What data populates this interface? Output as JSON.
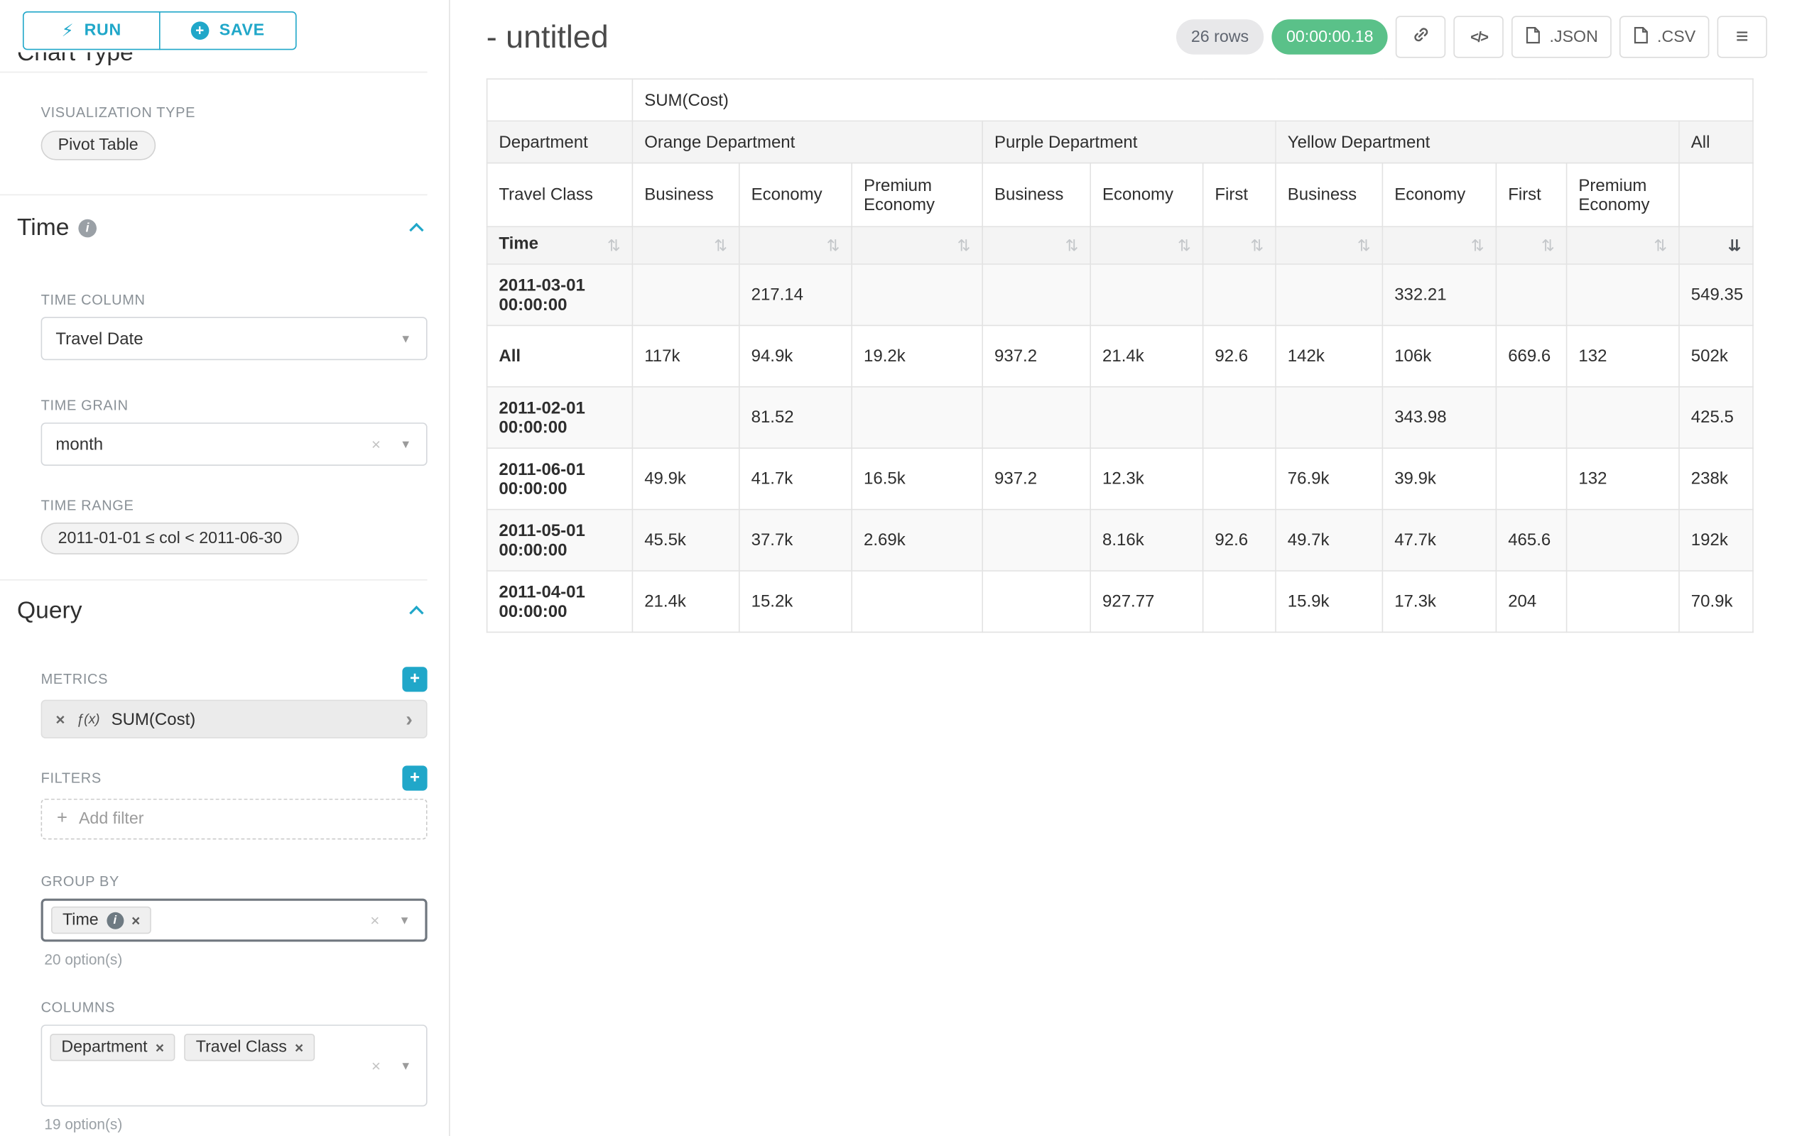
{
  "colors": {
    "accent": "#20a7c9",
    "timer_green": "#5ac189"
  },
  "icons": {
    "lightning": "⚡",
    "plus": "+",
    "chevron_down": "▾",
    "clear": "×",
    "caret_right": "›",
    "fx": "ƒ(x)",
    "info": "i",
    "sort": "⇅",
    "sort_desc": "⇊",
    "menu": "≡",
    "code": "</>"
  },
  "sidebar": {
    "run_button": "RUN",
    "save_button": "SAVE",
    "chart_type_heading": "Chart Type",
    "visualization_type_label": "VISUALIZATION TYPE",
    "visualization_type_value": "Pivot Table",
    "time": {
      "heading": "Time",
      "time_column_label": "TIME COLUMN",
      "time_column_value": "Travel Date",
      "time_grain_label": "TIME GRAIN",
      "time_grain_value": "month",
      "time_range_label": "TIME RANGE",
      "time_range_value": "2011-01-01 ≤ col < 2011-06-30"
    },
    "query": {
      "heading": "Query",
      "metrics_label": "METRICS",
      "metric_value": "SUM(Cost)",
      "filters_label": "FILTERS",
      "add_filter_placeholder": "Add filter",
      "group_by_label": "GROUP BY",
      "group_by_chips": [
        "Time"
      ],
      "group_by_options_hint": "20 option(s)",
      "columns_label": "COLUMNS",
      "columns_chips": [
        "Department",
        "Travel Class"
      ],
      "columns_options_hint": "19 option(s)"
    }
  },
  "header": {
    "title": "- untitled",
    "row_count_badge": "26 rows",
    "timer_badge": "00:00:00.18",
    "json_button": ".JSON",
    "csv_button": ".CSV"
  },
  "chart_data": {
    "type": "table",
    "metric_header": "SUM(Cost)",
    "row_dimension_labels": [
      "Department",
      "Travel Class",
      "Time"
    ],
    "column_groups": [
      {
        "label": "Orange Department",
        "columns": [
          "Business",
          "Economy",
          "Premium Economy"
        ]
      },
      {
        "label": "Purple Department",
        "columns": [
          "Business",
          "Economy",
          "First"
        ]
      },
      {
        "label": "Yellow Department",
        "columns": [
          "Business",
          "Economy",
          "First",
          "Premium Economy"
        ]
      },
      {
        "label": "All",
        "columns": [
          ""
        ]
      }
    ],
    "sort": {
      "column": "All",
      "direction": "desc"
    },
    "rows": [
      {
        "label": "2011-03-01 00:00:00",
        "values": [
          "",
          "217.14",
          "",
          "",
          "",
          "",
          "",
          "332.21",
          "",
          "",
          "549.35"
        ]
      },
      {
        "label": "All",
        "values": [
          "117k",
          "94.9k",
          "19.2k",
          "937.2",
          "21.4k",
          "92.6",
          "142k",
          "106k",
          "669.6",
          "132",
          "502k"
        ]
      },
      {
        "label": "2011-02-01 00:00:00",
        "values": [
          "",
          "81.52",
          "",
          "",
          "",
          "",
          "",
          "343.98",
          "",
          "",
          "425.5"
        ]
      },
      {
        "label": "2011-06-01 00:00:00",
        "values": [
          "49.9k",
          "41.7k",
          "16.5k",
          "937.2",
          "12.3k",
          "",
          "76.9k",
          "39.9k",
          "",
          "132",
          "238k"
        ]
      },
      {
        "label": "2011-05-01 00:00:00",
        "values": [
          "45.5k",
          "37.7k",
          "2.69k",
          "",
          "8.16k",
          "92.6",
          "49.7k",
          "47.7k",
          "465.6",
          "",
          "192k"
        ]
      },
      {
        "label": "2011-04-01 00:00:00",
        "values": [
          "21.4k",
          "15.2k",
          "",
          "",
          "927.77",
          "",
          "15.9k",
          "17.3k",
          "204",
          "",
          "70.9k"
        ]
      }
    ]
  }
}
